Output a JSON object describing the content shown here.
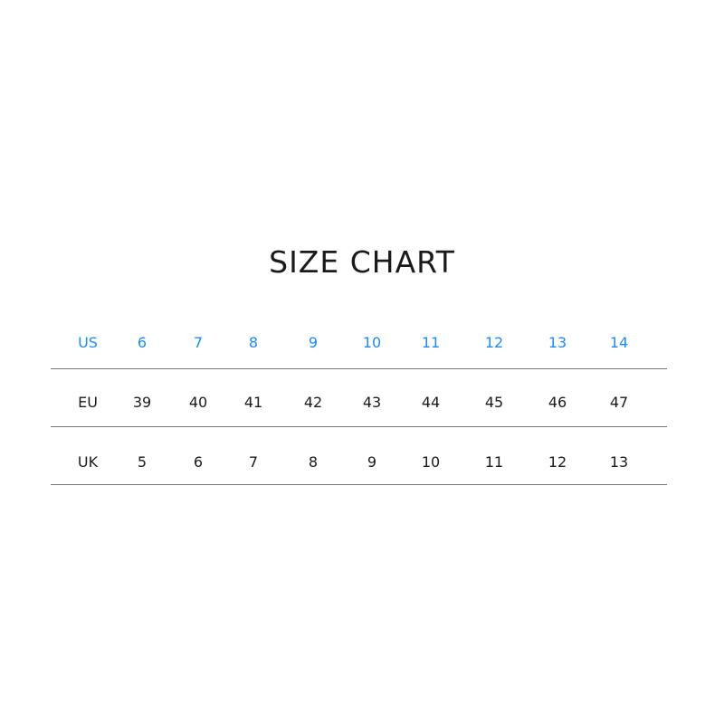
{
  "title": "SIZE CHART",
  "colors": {
    "header_row": "#1a8cff",
    "text": "#1a1a1a",
    "rule": "#777777"
  },
  "chart_data": {
    "type": "table",
    "title": "SIZE CHART",
    "rows": [
      {
        "label": "US",
        "values": [
          "6",
          "7",
          "8",
          "9",
          "10",
          "11",
          "12",
          "13",
          "14"
        ]
      },
      {
        "label": "EU",
        "values": [
          "39",
          "40",
          "41",
          "42",
          "43",
          "44",
          "45",
          "46",
          "47"
        ]
      },
      {
        "label": "UK",
        "values": [
          "5",
          "6",
          "7",
          "8",
          "9",
          "10",
          "11",
          "12",
          "13"
        ]
      }
    ]
  }
}
